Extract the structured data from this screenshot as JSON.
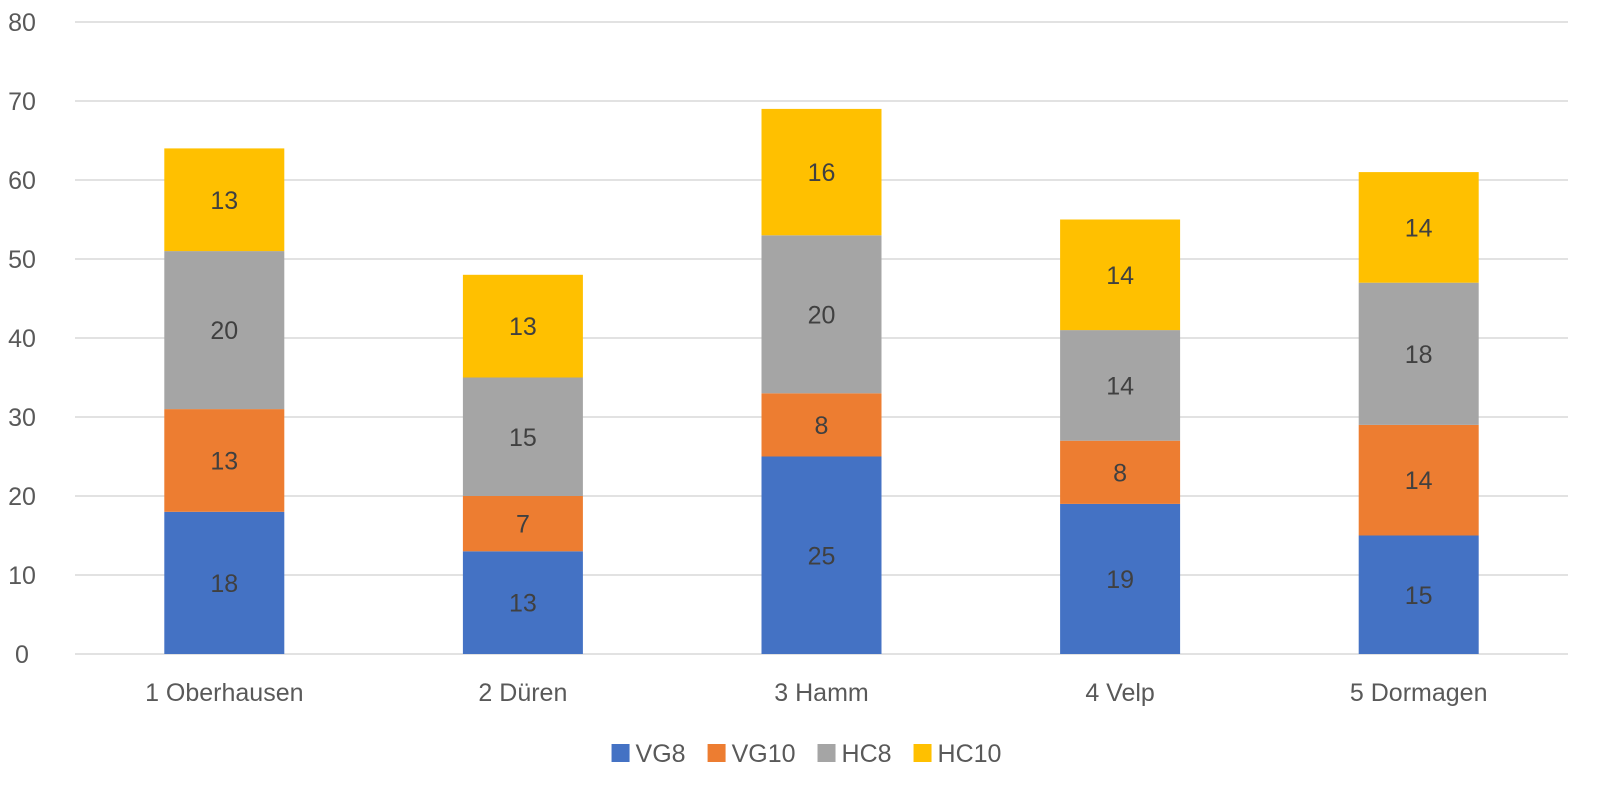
{
  "chart_data": {
    "type": "bar",
    "stacked": true,
    "categories": [
      "1 Oberhausen",
      "2 Düren",
      "3 Hamm",
      "4 Velp",
      "5 Dormagen"
    ],
    "series": [
      {
        "name": "VG8",
        "color": "#4472c4",
        "values": [
          18,
          13,
          25,
          19,
          15
        ]
      },
      {
        "name": "VG10",
        "color": "#ed7d31",
        "values": [
          13,
          7,
          8,
          8,
          14
        ]
      },
      {
        "name": "HC8",
        "color": "#a5a5a5",
        "values": [
          20,
          15,
          20,
          14,
          18
        ]
      },
      {
        "name": "HC10",
        "color": "#ffc000",
        "values": [
          13,
          13,
          16,
          14,
          14
        ]
      }
    ],
    "title": "",
    "xlabel": "",
    "ylabel": "",
    "ylim": [
      0,
      80
    ],
    "yticks": [
      0,
      10,
      20,
      30,
      40,
      50,
      60,
      70,
      80
    ],
    "grid": true,
    "data_labels": true,
    "legend_position": "bottom"
  }
}
